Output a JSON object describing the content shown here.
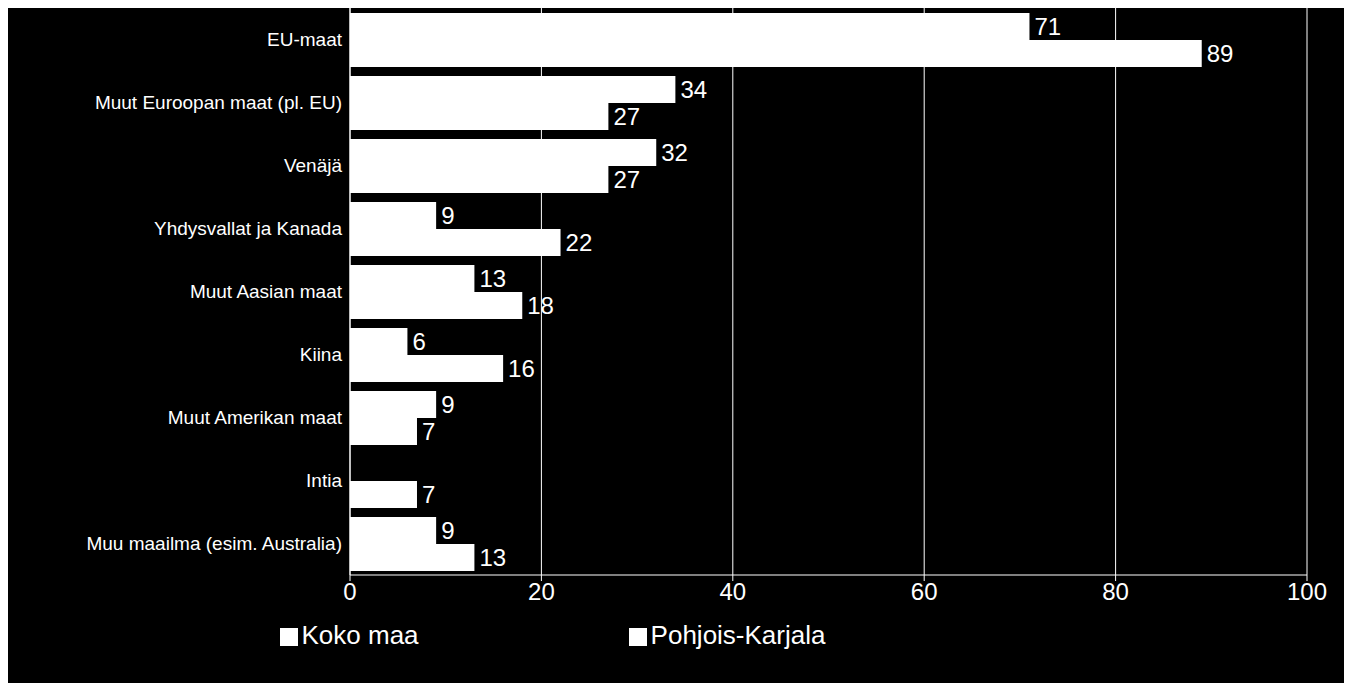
{
  "chart_data": {
    "type": "bar",
    "orientation": "horizontal",
    "categories": [
      "EU-maat",
      "Muut Euroopan maat (pl. EU)",
      "Venäjä",
      "Yhdysvallat ja Kanada",
      "Muut Aasian maat",
      "Kiina",
      "Muut Amerikan maat",
      "Intia",
      "Muu maailma (esim. Australia)"
    ],
    "series": [
      {
        "name": "Pohjois-Karjala",
        "color": "#ffffff",
        "values": [
          71,
          34,
          32,
          9,
          13,
          6,
          9,
          0,
          9
        ]
      },
      {
        "name": "Koko maa",
        "color": "#ffffff",
        "values": [
          89,
          27,
          27,
          22,
          18,
          16,
          7,
          7,
          13
        ]
      }
    ],
    "xlim": [
      0,
      100
    ],
    "xticks": [
      0,
      20,
      40,
      60,
      80,
      100
    ],
    "grid": true,
    "data_labels": true,
    "legend": "bottom"
  }
}
